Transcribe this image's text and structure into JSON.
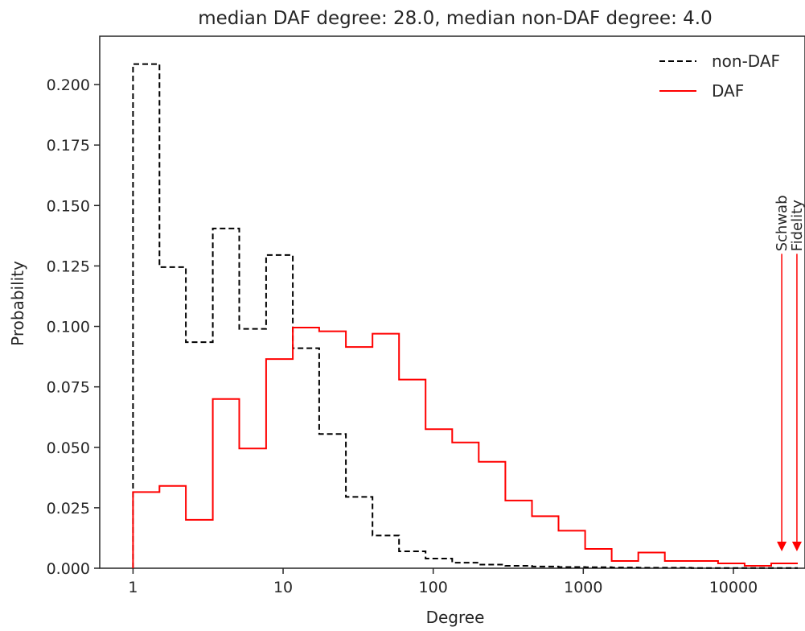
{
  "chart_data": {
    "type": "histogram-step",
    "title": "median DAF degree: 28.0, median non-DAF degree: 4.0",
    "xlabel": "Degree",
    "ylabel": "Probability",
    "x_scale": "log",
    "x_ticks": [
      1,
      10,
      100,
      1000,
      10000
    ],
    "x_tick_labels": [
      "1",
      "10",
      "100",
      "1000",
      "10000"
    ],
    "y_ticks": [
      0,
      0.025,
      0.05,
      0.075,
      0.1,
      0.125,
      0.15,
      0.175,
      0.2
    ],
    "y_tick_labels": [
      "0.000",
      "0.025",
      "0.050",
      "0.075",
      "0.100",
      "0.125",
      "0.150",
      "0.175",
      "0.200"
    ],
    "xlim": [
      0.6,
      30000
    ],
    "ylim": [
      0,
      0.22
    ],
    "bin_edges": [
      1,
      1.5,
      2.25,
      3.4,
      5.1,
      7.7,
      11.6,
      17.4,
      26.2,
      39.4,
      59.2,
      89.0,
      133.8,
      201.2,
      302.5,
      454.8,
      683.8,
      1028,
      1546,
      2325,
      3495,
      5255,
      7902,
      11881,
      17864,
      26860
    ],
    "grid": false,
    "legend_position": "top-right",
    "series": [
      {
        "name": "non-DAF",
        "style": "dashed",
        "color": "#000000",
        "values": [
          0.2085,
          0.1245,
          0.0935,
          0.1405,
          0.099,
          0.1295,
          0.091,
          0.0555,
          0.0295,
          0.0135,
          0.007,
          0.004,
          0.0023,
          0.0015,
          0.001,
          0.0007,
          0.0005,
          0.0004,
          0.0003,
          0.0002,
          0.0002,
          0.0001,
          0.0001,
          0.0001,
          0.0001
        ]
      },
      {
        "name": "DAF",
        "style": "solid",
        "color": "#ff0000",
        "values": [
          0.0315,
          0.034,
          0.02,
          0.07,
          0.0495,
          0.0865,
          0.0995,
          0.098,
          0.0915,
          0.097,
          0.078,
          0.0575,
          0.052,
          0.044,
          0.028,
          0.0215,
          0.0155,
          0.008,
          0.003,
          0.0065,
          0.003,
          0.003,
          0.002,
          0.001,
          0.002
        ]
      }
    ],
    "annotations": [
      {
        "text": "Schwab",
        "x": 21000,
        "y_top": 0.13,
        "y_bottom": 0.007,
        "color": "#ff0000"
      },
      {
        "text": "Fidelity",
        "x": 26500,
        "y_top": 0.13,
        "y_bottom": 0.007,
        "color": "#ff0000"
      }
    ]
  }
}
